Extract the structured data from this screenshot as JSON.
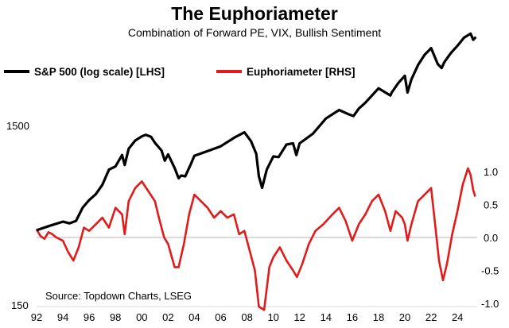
{
  "chart_data": {
    "type": "line",
    "title": "The Euphoriameter",
    "subtitle": "Combination of Forward PE, VIX, Bullish Sentiment",
    "source": "Source: Topdown Charts, LSEG",
    "x_ticks": [
      "92",
      "94",
      "96",
      "98",
      "00",
      "02",
      "04",
      "06",
      "08",
      "10",
      "12",
      "14",
      "16",
      "18",
      "20",
      "22",
      "24"
    ],
    "x_range": [
      1992,
      2025.5
    ],
    "left_axis": {
      "scale": "log",
      "range": [
        150,
        5600
      ],
      "ticks": [
        "1500",
        "150"
      ]
    },
    "right_axis": {
      "range": [
        -1.0,
        1.35
      ],
      "ticks": [
        "1.0",
        "0.5",
        "0.0",
        "-0.5",
        "-1.0"
      ]
    },
    "series": [
      {
        "name": "S&P 500 (log scale) [LHS]",
        "axis": "left",
        "color": "#000000",
        "points": [
          [
            1992.0,
            415
          ],
          [
            1993.0,
            440
          ],
          [
            1994.0,
            465
          ],
          [
            1994.5,
            455
          ],
          [
            1995.0,
            470
          ],
          [
            1995.5,
            560
          ],
          [
            1996.0,
            620
          ],
          [
            1996.5,
            670
          ],
          [
            1997.0,
            760
          ],
          [
            1997.5,
            930
          ],
          [
            1998.0,
            970
          ],
          [
            1998.5,
            1130
          ],
          [
            1998.7,
            990
          ],
          [
            1999.0,
            1230
          ],
          [
            1999.5,
            1370
          ],
          [
            2000.0,
            1450
          ],
          [
            2000.3,
            1480
          ],
          [
            2000.7,
            1440
          ],
          [
            2001.0,
            1330
          ],
          [
            2001.5,
            1200
          ],
          [
            2001.75,
            1050
          ],
          [
            2002.0,
            1140
          ],
          [
            2002.5,
            950
          ],
          [
            2002.8,
            830
          ],
          [
            2003.0,
            860
          ],
          [
            2003.3,
            850
          ],
          [
            2003.7,
            990
          ],
          [
            2004.0,
            1120
          ],
          [
            2005.0,
            1190
          ],
          [
            2006.0,
            1270
          ],
          [
            2007.0,
            1420
          ],
          [
            2007.8,
            1530
          ],
          [
            2008.3,
            1360
          ],
          [
            2008.7,
            1150
          ],
          [
            2008.9,
            850
          ],
          [
            2009.15,
            730
          ],
          [
            2009.5,
            930
          ],
          [
            2010.0,
            1110
          ],
          [
            2010.4,
            1100
          ],
          [
            2011.0,
            1300
          ],
          [
            2011.5,
            1320
          ],
          [
            2011.75,
            1130
          ],
          [
            2012.0,
            1320
          ],
          [
            2013.0,
            1500
          ],
          [
            2014.0,
            1840
          ],
          [
            2015.0,
            2060
          ],
          [
            2015.7,
            1950
          ],
          [
            2016.1,
            1900
          ],
          [
            2016.5,
            2100
          ],
          [
            2017.0,
            2270
          ],
          [
            2018.0,
            2750
          ],
          [
            2018.9,
            2500
          ],
          [
            2019.0,
            2600
          ],
          [
            2019.5,
            2950
          ],
          [
            2020.0,
            3250
          ],
          [
            2020.2,
            2600
          ],
          [
            2020.5,
            3100
          ],
          [
            2021.0,
            3750
          ],
          [
            2021.5,
            4300
          ],
          [
            2022.0,
            4700
          ],
          [
            2022.5,
            3800
          ],
          [
            2022.8,
            3600
          ],
          [
            2023.0,
            3900
          ],
          [
            2023.5,
            4400
          ],
          [
            2024.0,
            4850
          ],
          [
            2024.5,
            5400
          ],
          [
            2025.0,
            5700
          ],
          [
            2025.2,
            5250
          ],
          [
            2025.4,
            5450
          ]
        ]
      },
      {
        "name": "Euphoriameter [RHS]",
        "axis": "right",
        "color": "#e11a1a",
        "points": [
          [
            1992.0,
            0.12
          ],
          [
            1992.3,
            0.02
          ],
          [
            1992.6,
            -0.02
          ],
          [
            1992.9,
            0.08
          ],
          [
            1993.2,
            0.05
          ],
          [
            1993.5,
            0.0
          ],
          [
            1994.0,
            -0.05
          ],
          [
            1994.4,
            -0.22
          ],
          [
            1994.8,
            -0.35
          ],
          [
            1995.2,
            -0.15
          ],
          [
            1995.6,
            0.15
          ],
          [
            1996.0,
            0.1
          ],
          [
            1996.5,
            0.2
          ],
          [
            1997.0,
            0.3
          ],
          [
            1997.5,
            0.15
          ],
          [
            1998.0,
            0.45
          ],
          [
            1998.5,
            0.35
          ],
          [
            1998.7,
            0.05
          ],
          [
            1999.0,
            0.55
          ],
          [
            1999.5,
            0.75
          ],
          [
            2000.0,
            0.85
          ],
          [
            2000.5,
            0.7
          ],
          [
            2001.0,
            0.55
          ],
          [
            2001.3,
            0.3
          ],
          [
            2001.7,
            0.0
          ],
          [
            2002.0,
            -0.1
          ],
          [
            2002.5,
            -0.45
          ],
          [
            2002.8,
            -0.45
          ],
          [
            2003.2,
            -0.1
          ],
          [
            2003.6,
            0.35
          ],
          [
            2004.0,
            0.65
          ],
          [
            2004.5,
            0.55
          ],
          [
            2005.0,
            0.45
          ],
          [
            2005.5,
            0.3
          ],
          [
            2006.0,
            0.4
          ],
          [
            2006.5,
            0.3
          ],
          [
            2007.0,
            0.35
          ],
          [
            2007.4,
            0.05
          ],
          [
            2007.8,
            0.1
          ],
          [
            2008.2,
            -0.2
          ],
          [
            2008.6,
            -0.5
          ],
          [
            2008.9,
            -1.05
          ],
          [
            2009.3,
            -1.1
          ],
          [
            2009.7,
            -0.45
          ],
          [
            2010.0,
            -0.3
          ],
          [
            2010.5,
            -0.15
          ],
          [
            2011.0,
            -0.35
          ],
          [
            2011.5,
            -0.5
          ],
          [
            2011.8,
            -0.6
          ],
          [
            2012.2,
            -0.4
          ],
          [
            2012.7,
            -0.1
          ],
          [
            2013.2,
            0.1
          ],
          [
            2013.8,
            0.2
          ],
          [
            2014.5,
            0.35
          ],
          [
            2015.0,
            0.45
          ],
          [
            2015.5,
            0.25
          ],
          [
            2016.0,
            -0.05
          ],
          [
            2016.5,
            0.2
          ],
          [
            2017.0,
            0.35
          ],
          [
            2017.5,
            0.55
          ],
          [
            2018.0,
            0.65
          ],
          [
            2018.5,
            0.4
          ],
          [
            2018.9,
            0.1
          ],
          [
            2019.3,
            0.4
          ],
          [
            2019.8,
            0.3
          ],
          [
            2020.0,
            0.2
          ],
          [
            2020.2,
            -0.05
          ],
          [
            2020.5,
            0.2
          ],
          [
            2021.0,
            0.55
          ],
          [
            2021.5,
            0.65
          ],
          [
            2022.0,
            0.75
          ],
          [
            2022.3,
            0.2
          ],
          [
            2022.6,
            -0.35
          ],
          [
            2022.9,
            -0.65
          ],
          [
            2023.2,
            -0.4
          ],
          [
            2023.6,
            0.05
          ],
          [
            2024.0,
            0.4
          ],
          [
            2024.4,
            0.8
          ],
          [
            2024.8,
            1.05
          ],
          [
            2025.0,
            0.95
          ],
          [
            2025.2,
            0.72
          ],
          [
            2025.35,
            0.62
          ]
        ]
      }
    ]
  }
}
